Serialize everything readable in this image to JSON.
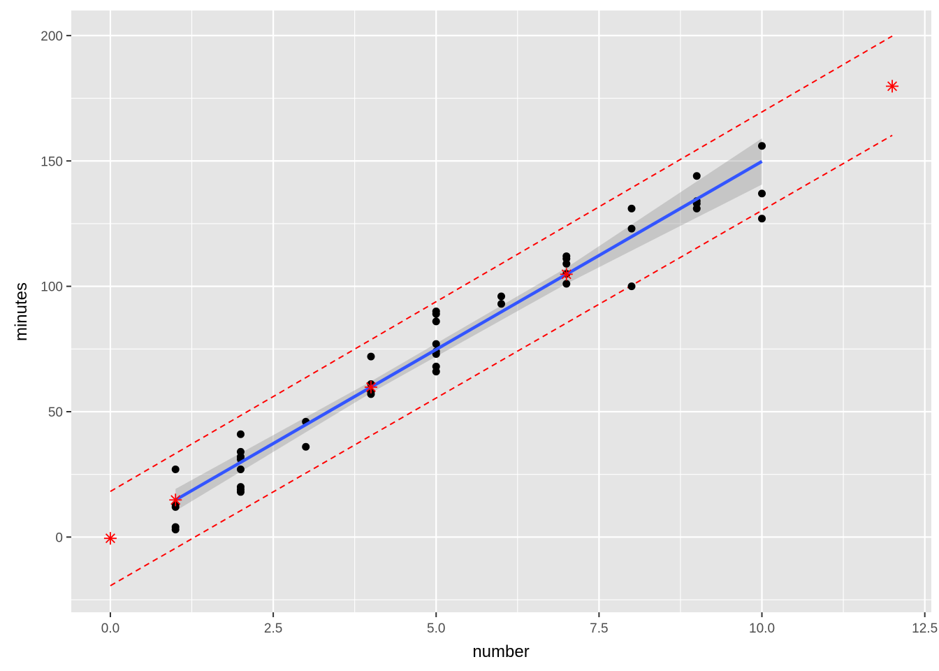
{
  "chart_data": {
    "type": "scatter",
    "title": "",
    "xlabel": "number",
    "ylabel": "minutes",
    "xlim": [
      -0.6,
      12.6
    ],
    "ylim": [
      -30,
      210
    ],
    "x_ticks": [
      0,
      2.5,
      5,
      7.5,
      10,
      12.5
    ],
    "x_tick_labels": [
      "0.0",
      "2.5",
      "5.0",
      "7.5",
      "10.0",
      "12.5"
    ],
    "y_ticks": [
      0,
      50,
      100,
      150,
      200
    ],
    "y_tick_labels": [
      "0",
      "50",
      "100",
      "150",
      "200"
    ],
    "grid": true,
    "legend": "none",
    "colors": {
      "panel_bg": "#e5e5e5",
      "grid": "#ffffff",
      "points": "#000000",
      "fit_line": "#3355ff",
      "confidence_band": "#999999",
      "prediction_interval": "#ff0000",
      "prediction_points": "#ff0000"
    },
    "points": [
      {
        "x": 1,
        "y": 27
      },
      {
        "x": 1,
        "y": 12
      },
      {
        "x": 1,
        "y": 4
      },
      {
        "x": 1,
        "y": 3
      },
      {
        "x": 1,
        "y": 13
      },
      {
        "x": 2,
        "y": 41
      },
      {
        "x": 2,
        "y": 34
      },
      {
        "x": 2,
        "y": 32
      },
      {
        "x": 2,
        "y": 31
      },
      {
        "x": 2,
        "y": 27
      },
      {
        "x": 2,
        "y": 20
      },
      {
        "x": 2,
        "y": 19
      },
      {
        "x": 2,
        "y": 18
      },
      {
        "x": 3,
        "y": 46
      },
      {
        "x": 3,
        "y": 36
      },
      {
        "x": 4,
        "y": 72
      },
      {
        "x": 4,
        "y": 61
      },
      {
        "x": 4,
        "y": 58
      },
      {
        "x": 4,
        "y": 57
      },
      {
        "x": 5,
        "y": 90
      },
      {
        "x": 5,
        "y": 89
      },
      {
        "x": 5,
        "y": 86
      },
      {
        "x": 5,
        "y": 77
      },
      {
        "x": 5,
        "y": 74
      },
      {
        "x": 5,
        "y": 73
      },
      {
        "x": 5,
        "y": 68
      },
      {
        "x": 5,
        "y": 66
      },
      {
        "x": 6,
        "y": 96
      },
      {
        "x": 6,
        "y": 93
      },
      {
        "x": 7,
        "y": 112
      },
      {
        "x": 7,
        "y": 111
      },
      {
        "x": 7,
        "y": 109
      },
      {
        "x": 7,
        "y": 105
      },
      {
        "x": 7,
        "y": 101
      },
      {
        "x": 8,
        "y": 131
      },
      {
        "x": 8,
        "y": 123
      },
      {
        "x": 8,
        "y": 100
      },
      {
        "x": 9,
        "y": 144
      },
      {
        "x": 9,
        "y": 134
      },
      {
        "x": 9,
        "y": 133
      },
      {
        "x": 9,
        "y": 131
      },
      {
        "x": 10,
        "y": 156
      },
      {
        "x": 10,
        "y": 137
      },
      {
        "x": 10,
        "y": 127
      }
    ],
    "fit_line": {
      "x": [
        1,
        10
      ],
      "y": [
        14.8,
        149.8
      ]
    },
    "confidence_band": {
      "x": [
        1,
        4,
        7,
        10
      ],
      "lower": [
        10.4,
        57.5,
        101.0,
        140.6
      ],
      "upper": [
        19.2,
        62.1,
        107.4,
        159.0
      ]
    },
    "prediction_interval": {
      "x": [
        0,
        12
      ],
      "lower": [
        -19.4,
        160.2
      ],
      "upper": [
        18.2,
        199.8
      ]
    },
    "prediction_points": [
      {
        "x": 0,
        "y": -0.5
      },
      {
        "x": 1,
        "y": 14.8
      },
      {
        "x": 4,
        "y": 59.8
      },
      {
        "x": 7,
        "y": 104.8
      },
      {
        "x": 12,
        "y": 179.8
      }
    ]
  }
}
